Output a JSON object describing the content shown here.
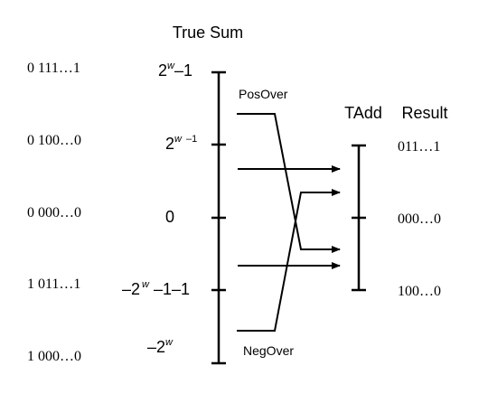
{
  "headers": {
    "true_sum": "True Sum",
    "tadd": "TAdd",
    "result": "Result"
  },
  "bit_patterns": [
    "0 111…1",
    "0 100…0",
    "0 000…0",
    "1 011…1",
    "1 000…0"
  ],
  "true_sum_labels": {
    "max": {
      "base": "2",
      "exp": "w",
      "tail": "–1"
    },
    "pos_half": {
      "base": "2",
      "exp": "w",
      "tail": " –1"
    },
    "zero": {
      "text": "0"
    },
    "neg_half": {
      "base": "–2",
      "exp": "w",
      "tail": " –1–1"
    },
    "min": {
      "base": "–2",
      "exp": "w",
      "tail": ""
    }
  },
  "overflow_labels": {
    "pos": "PosOver",
    "neg": "NegOver"
  },
  "result_labels": [
    "011…1",
    "000…0",
    "100…0"
  ],
  "colors": {
    "ink": "#000000",
    "background": "#ffffff"
  }
}
